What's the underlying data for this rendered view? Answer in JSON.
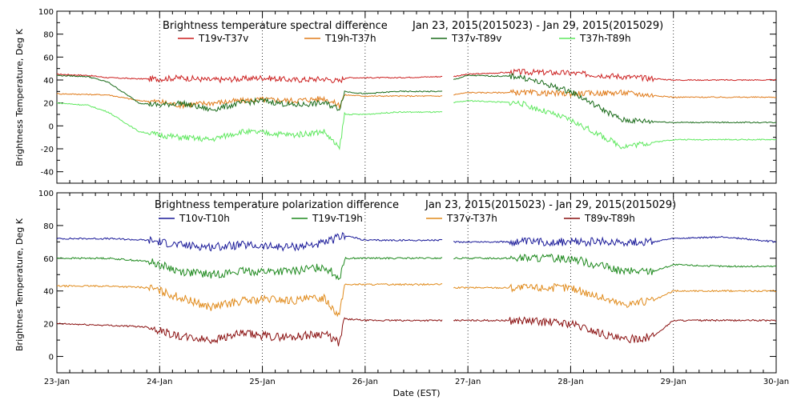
{
  "chart_data": [
    {
      "type": "line",
      "title": "Brightness temperature spectral difference",
      "date_range": "Jan 23, 2015(2015023) - Jan 29, 2015(2015029)",
      "ylabel": "Brightness Temperature, Deg K",
      "xlabel": "",
      "xlim": [
        0,
        7
      ],
      "ylim": [
        -50,
        100
      ],
      "yticks": [
        -40,
        -20,
        0,
        20,
        40,
        60,
        80,
        100
      ],
      "grid_x": [
        1,
        2,
        3,
        4,
        5,
        6
      ],
      "data_gap": [
        3.75,
        3.85
      ],
      "series": [
        {
          "name": "T19v-T37v",
          "color": "#cc1f1f",
          "x": [
            0,
            0.3,
            0.5,
            0.8,
            1.0,
            1.2,
            1.5,
            1.8,
            2.0,
            2.3,
            2.6,
            2.75,
            2.8,
            3.0,
            3.3,
            3.75,
            3.85,
            4.0,
            4.5,
            5.0,
            5.5,
            6.0,
            6.5,
            7.0
          ],
          "values": [
            45,
            44,
            42,
            41,
            41,
            42,
            40,
            41,
            42,
            40,
            41,
            39,
            42,
            42,
            42,
            43,
            43,
            45,
            47,
            46,
            43,
            40,
            40,
            40
          ]
        },
        {
          "name": "T19h-T37h",
          "color": "#e07b1a",
          "x": [
            0,
            0.5,
            0.8,
            1.0,
            1.2,
            1.5,
            1.8,
            2.0,
            2.3,
            2.6,
            2.75,
            2.8,
            3.0,
            3.3,
            3.75,
            3.85,
            4.0,
            4.5,
            5.0,
            5.5,
            6.0,
            6.5,
            7.0
          ],
          "values": [
            28,
            27,
            22,
            21,
            18,
            20,
            22,
            23,
            22,
            24,
            18,
            27,
            26,
            26,
            26,
            27,
            29,
            29,
            28,
            29,
            25,
            25,
            25
          ]
        },
        {
          "name": "T37v-T89v",
          "color": "#1a6b1a",
          "x": [
            0,
            0.3,
            0.5,
            0.8,
            1.0,
            1.2,
            1.5,
            1.8,
            2.0,
            2.3,
            2.6,
            2.75,
            2.8,
            3.0,
            3.3,
            3.75,
            3.85,
            4.0,
            4.5,
            5.0,
            5.5,
            6.0,
            6.5,
            7.0
          ],
          "values": [
            44,
            43,
            38,
            20,
            18,
            20,
            14,
            20,
            22,
            18,
            20,
            15,
            30,
            28,
            30,
            30,
            40,
            44,
            43,
            30,
            5,
            3,
            3,
            3
          ]
        },
        {
          "name": "T37h-T89h",
          "color": "#5ee85e",
          "x": [
            0,
            0.3,
            0.5,
            0.8,
            1.0,
            1.2,
            1.5,
            1.8,
            2.0,
            2.3,
            2.6,
            2.75,
            2.8,
            3.0,
            3.3,
            3.75,
            3.85,
            4.0,
            4.5,
            5.0,
            5.5,
            6.0,
            6.5,
            7.0
          ],
          "values": [
            20,
            18,
            12,
            -5,
            -8,
            -10,
            -12,
            -5,
            -6,
            -8,
            -5,
            -20,
            10,
            10,
            12,
            12,
            20,
            22,
            20,
            5,
            -18,
            -12,
            -12,
            -12
          ]
        }
      ]
    },
    {
      "type": "line",
      "title": "Brightness temperature polarization difference",
      "date_range": "Jan 23, 2015(2015023) - Jan 29, 2015(2015029)",
      "ylabel": "Brightnes Temperature, Deg K",
      "xlabel": "Date (EST)",
      "xlim": [
        0,
        7
      ],
      "ylim": [
        -10,
        100
      ],
      "yticks": [
        0,
        20,
        40,
        60,
        80,
        100
      ],
      "xtick_labels": [
        "23-Jan",
        "24-Jan",
        "25-Jan",
        "26-Jan",
        "27-Jan",
        "28-Jan",
        "29-Jan",
        "30-Jan"
      ],
      "grid_x": [
        1,
        2,
        3,
        4,
        5,
        6
      ],
      "data_gap": [
        3.75,
        3.85
      ],
      "series": [
        {
          "name": "T10v-T10h",
          "color": "#1a1a99",
          "x": [
            0,
            0.5,
            0.9,
            1.2,
            1.5,
            1.8,
            2.1,
            2.3,
            2.6,
            2.75,
            2.8,
            3.0,
            3.3,
            3.75,
            3.85,
            4.0,
            4.5,
            5.0,
            5.5,
            5.8,
            6.0,
            6.5,
            7.0
          ],
          "values": [
            72,
            72,
            71,
            68,
            67,
            68,
            67,
            67,
            69,
            73,
            74,
            71,
            71,
            71,
            70,
            70,
            70,
            70,
            70,
            70,
            72,
            73,
            70
          ]
        },
        {
          "name": "T19v-T19h",
          "color": "#1f8a1f",
          "x": [
            0,
            0.5,
            0.9,
            1.2,
            1.5,
            1.8,
            2.1,
            2.3,
            2.6,
            2.75,
            2.8,
            3.0,
            3.3,
            3.75,
            3.85,
            4.0,
            4.5,
            5.0,
            5.5,
            5.8,
            6.0,
            6.5,
            7.0
          ],
          "values": [
            60,
            60,
            58,
            52,
            50,
            52,
            52,
            52,
            55,
            48,
            60,
            60,
            60,
            60,
            60,
            60,
            60,
            60,
            52,
            52,
            56,
            55,
            55
          ]
        },
        {
          "name": "T37v-T37h",
          "color": "#e08a1a",
          "x": [
            0,
            0.5,
            0.9,
            1.2,
            1.5,
            1.8,
            2.1,
            2.3,
            2.6,
            2.75,
            2.8,
            3.0,
            3.3,
            3.75,
            3.85,
            4.0,
            4.5,
            5.0,
            5.5,
            5.8,
            6.0,
            6.5,
            7.0
          ],
          "values": [
            43,
            43,
            42,
            36,
            30,
            34,
            35,
            34,
            36,
            25,
            44,
            44,
            44,
            44,
            42,
            42,
            42,
            42,
            32,
            34,
            40,
            40,
            40
          ]
        },
        {
          "name": "T89v-T89h",
          "color": "#8a1010",
          "x": [
            0,
            0.5,
            0.9,
            1.2,
            1.5,
            1.8,
            2.1,
            2.3,
            2.6,
            2.75,
            2.8,
            3.0,
            3.3,
            3.75,
            3.85,
            4.0,
            4.5,
            5.0,
            5.5,
            5.8,
            6.0,
            6.5,
            7.0
          ],
          "values": [
            20,
            19,
            18,
            12,
            10,
            14,
            12,
            12,
            14,
            8,
            23,
            22,
            22,
            22,
            22,
            22,
            22,
            20,
            10,
            12,
            22,
            22,
            22
          ]
        }
      ]
    }
  ]
}
